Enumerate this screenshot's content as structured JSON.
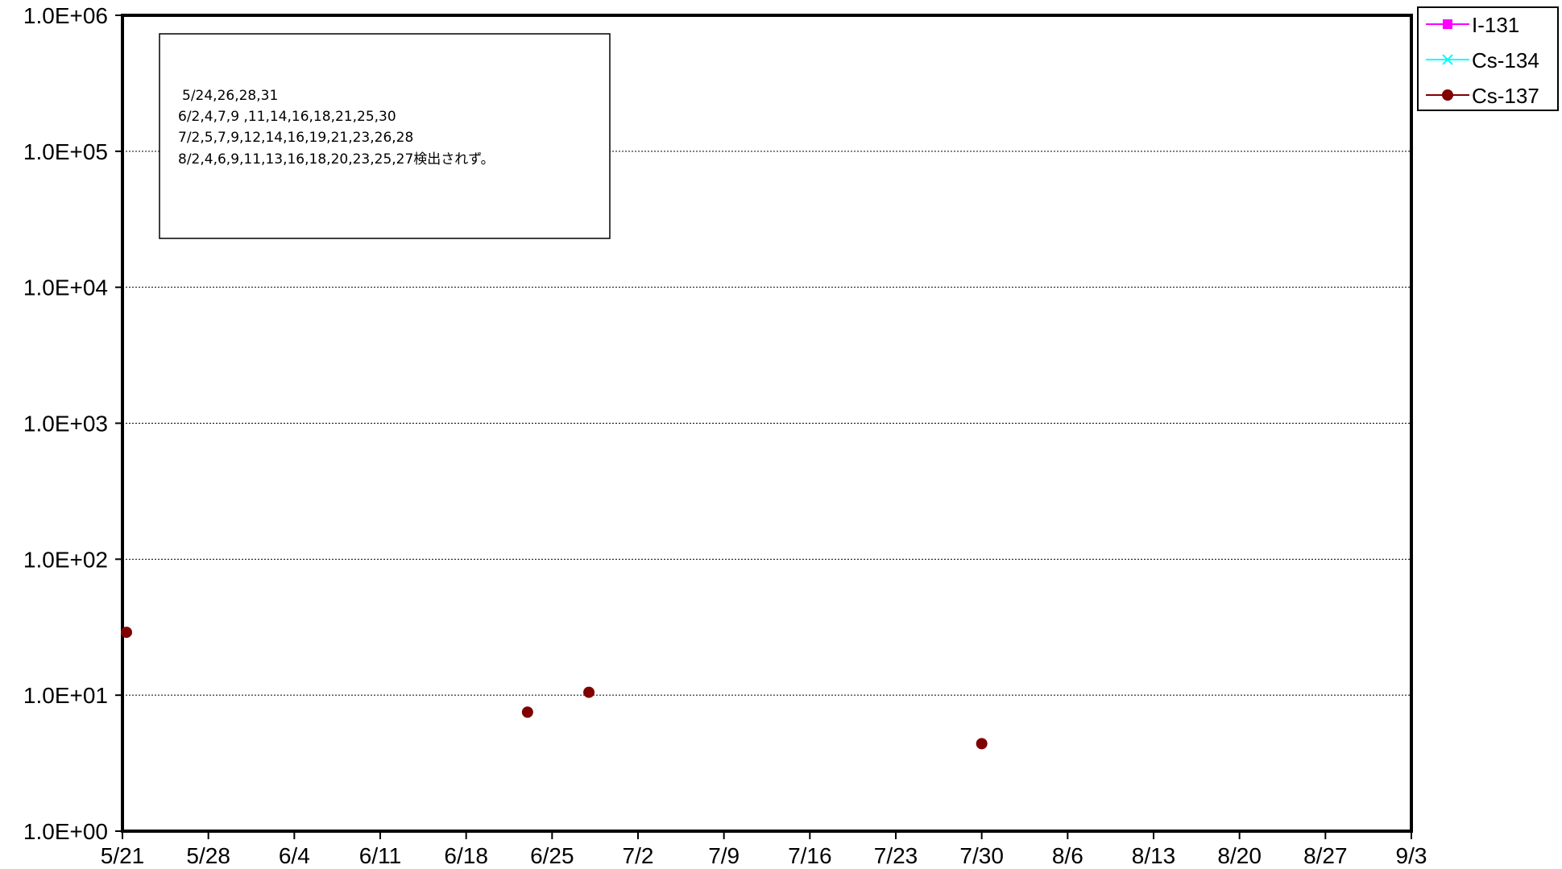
{
  "chart_data": {
    "type": "scatter",
    "x_ticks": [
      "5/21",
      "5/28",
      "6/4",
      "6/11",
      "6/18",
      "6/25",
      "7/2",
      "7/9",
      "7/16",
      "7/23",
      "7/30",
      "8/6",
      "8/13",
      "8/20",
      "8/27",
      "9/3"
    ],
    "y_ticks": [
      "1.0E+00",
      "1.0E+01",
      "1.0E+02",
      "1.0E+03",
      "1.0E+04",
      "1.0E+05",
      "1.0E+06"
    ],
    "y_scale": "log",
    "ylim": [
      1,
      1000000
    ],
    "xlim": [
      "5/21",
      "9/3"
    ],
    "grid": "horizontal",
    "legend_position": "top-right, outside plot",
    "series": [
      {
        "name": "I-131",
        "color": "#ff00ff",
        "marker": "square",
        "points": []
      },
      {
        "name": "Cs-134",
        "color": "#00ffff",
        "marker": "x",
        "points": []
      },
      {
        "name": "Cs-137",
        "color": "#800000",
        "marker": "circle",
        "points": [
          {
            "x": "5/21",
            "y": 29
          },
          {
            "x": "6/23",
            "y": 7.5
          },
          {
            "x": "6/28",
            "y": 10.5
          },
          {
            "x": "7/30",
            "y": 4.4
          }
        ]
      }
    ],
    "annotation": [
      "5/24,26,28,31",
      "6/2,4,7,9 ,11,14,16,18,21,25,30",
      "7/2,5,7,9,12,14,16,19,21,23,26,28",
      "8/2,4,6,9,11,13,16,18,20,23,25,27検出されず。"
    ]
  }
}
